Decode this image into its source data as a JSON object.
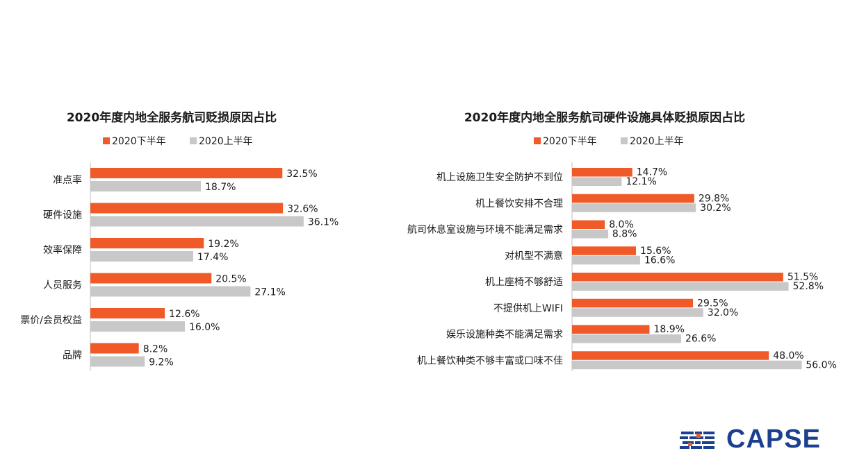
{
  "colors": {
    "series_h2": "#f05a28",
    "series_h1": "#c8c8c8"
  },
  "logo": {
    "text": "CAPSE"
  },
  "chart_data": [
    {
      "type": "bar",
      "orientation": "horizontal",
      "title": "2020年度内地全服务航司贬损原因占比",
      "legend": "top",
      "categories": [
        "准点率",
        "硬件设施",
        "效率保障",
        "人员服务",
        "票价/会员权益",
        "品牌"
      ],
      "series": [
        {
          "name": "2020下半年",
          "values": [
            32.5,
            32.6,
            19.2,
            20.5,
            12.6,
            8.2
          ]
        },
        {
          "name": "2020上半年",
          "values": [
            18.7,
            36.1,
            17.4,
            27.1,
            16.0,
            9.2
          ]
        }
      ],
      "unit": "%"
    },
    {
      "type": "bar",
      "orientation": "horizontal",
      "title": "2020年度内地全服务航司硬件设施具体贬损原因占比",
      "legend": "top",
      "categories": [
        "机上设施卫生安全防护不到位",
        "机上餐饮安排不合理",
        "航司休息室设施与环境不能满足需求",
        "对机型不满意",
        "机上座椅不够舒适",
        "不提供机上WIFI",
        "娱乐设施种类不能满足需求",
        "机上餐饮种类不够丰富或口味不佳"
      ],
      "series": [
        {
          "name": "2020下半年",
          "values": [
            14.7,
            29.8,
            8.0,
            15.6,
            51.5,
            29.5,
            18.9,
            48.0
          ]
        },
        {
          "name": "2020上半年",
          "values": [
            12.1,
            30.2,
            8.8,
            16.6,
            52.8,
            32.0,
            26.6,
            56.0
          ]
        }
      ],
      "unit": "%"
    }
  ]
}
